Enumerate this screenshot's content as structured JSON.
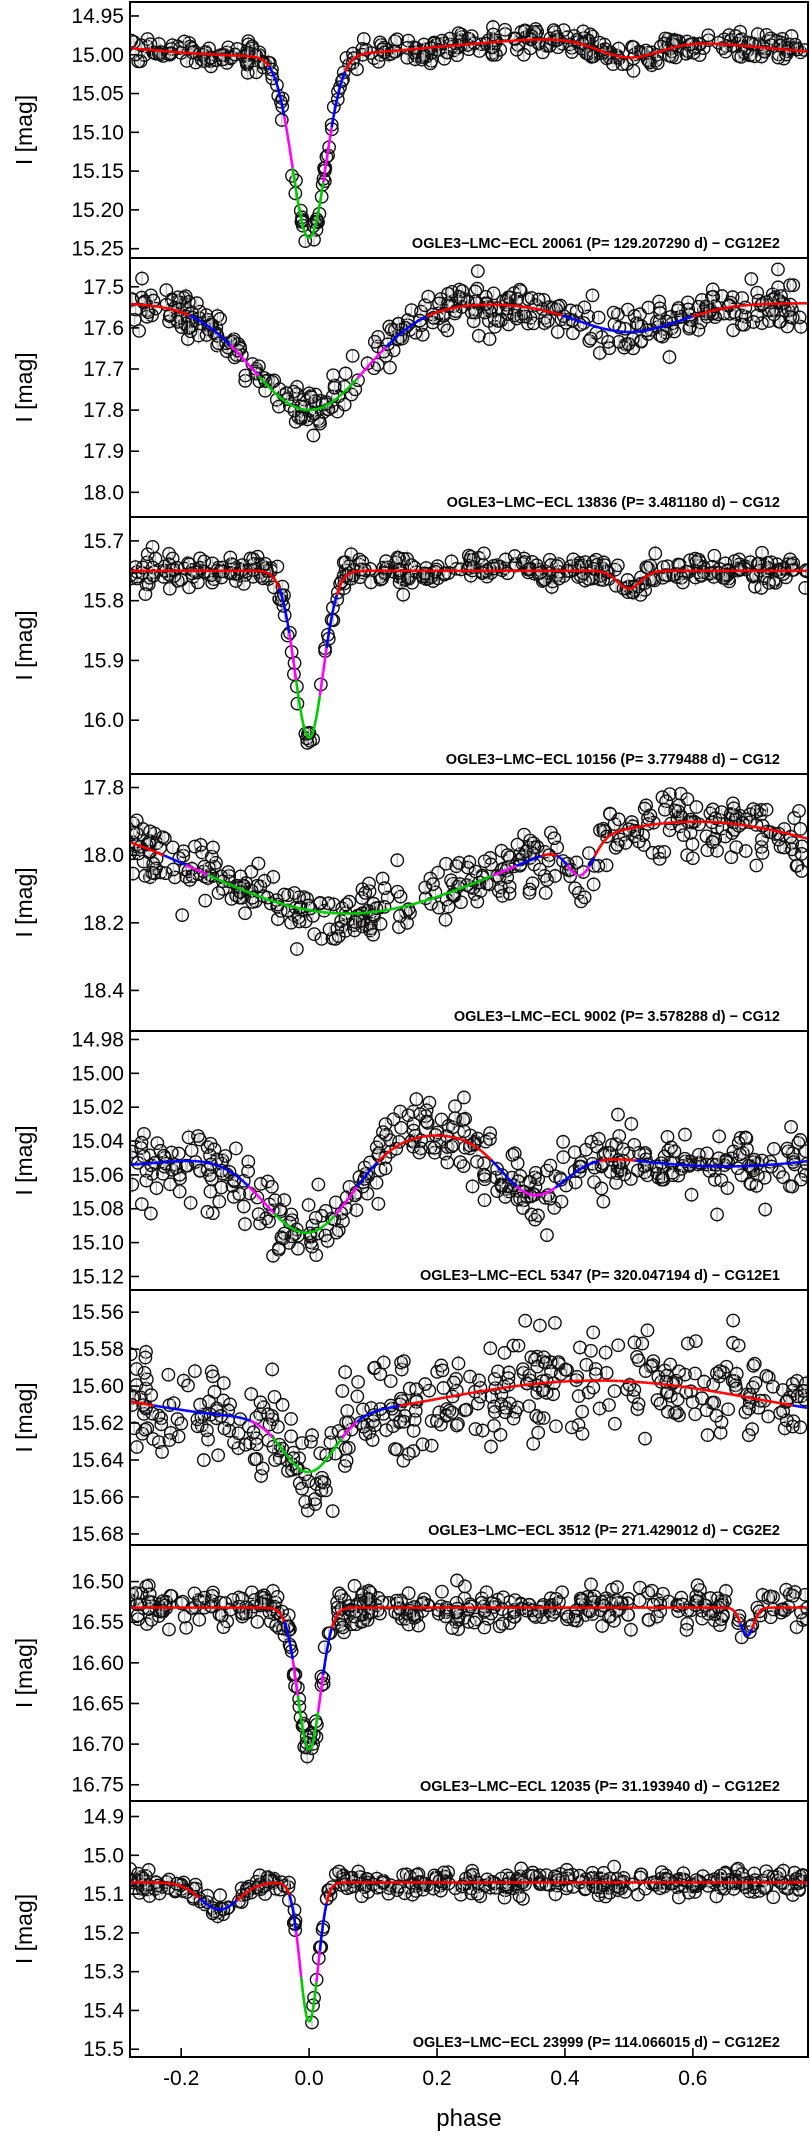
{
  "figure": {
    "xlabel": "phase",
    "x_ticks": [
      -0.2,
      0.0,
      0.2,
      0.4,
      0.6
    ]
  },
  "chart_data": [
    {
      "type": "scatter",
      "annotation": "OGLE3−LMC−ECL 20061  (P= 129.207290 d) − CG12E2",
      "ylabel": "I [mag]",
      "ylim": [
        15.262,
        14.932
      ],
      "xlim": [
        -0.28,
        0.78
      ],
      "y_ticks": [
        "14.95",
        "15.00",
        "15.05",
        "15.10",
        "15.15",
        "15.20",
        "15.25"
      ],
      "baseline": 14.99,
      "features": [
        {
          "center": 0.0,
          "depth": 0.235,
          "width": 0.026
        },
        {
          "center": 0.5,
          "depth": 0.025,
          "width": 0.05
        }
      ],
      "modulation": {
        "amplitude": 0.012,
        "period": 1.0,
        "phase": 0.3
      },
      "noise": 0.008,
      "fit_colors": [
        "#ff0000",
        "#0000ff",
        "#ff00ff",
        "#00cc00"
      ]
    },
    {
      "type": "scatter",
      "annotation": "OGLE3−LMC−ECL 13836  (P= 3.481180 d) − CG12",
      "ylabel": "I [mag]",
      "ylim": [
        18.06,
        17.43
      ],
      "xlim": [
        -0.28,
        0.78
      ],
      "y_ticks": [
        "17.5",
        "17.6",
        "17.7",
        "17.8",
        "17.9",
        "18.0"
      ],
      "baseline": 17.54,
      "features": [
        {
          "center": 0.0,
          "depth": 0.26,
          "width": 0.09
        },
        {
          "center": 0.5,
          "depth": 0.07,
          "width": 0.08
        }
      ],
      "modulation": {
        "amplitude": 0.0,
        "period": 1.0,
        "phase": 0.0
      },
      "noise": 0.03,
      "fit_colors": [
        "#ff0000",
        "#0000ff",
        "#ff00ff",
        "#00cc00"
      ]
    },
    {
      "type": "scatter",
      "annotation": "OGLE3−LMC−ECL 10156  (P= 3.779488 d) − CG12",
      "ylabel": "I [mag]",
      "ylim": [
        16.09,
        15.66
      ],
      "xlim": [
        -0.28,
        0.78
      ],
      "y_ticks": [
        "15.7",
        "15.8",
        "15.9",
        "16.0"
      ],
      "baseline": 15.75,
      "features": [
        {
          "center": 0.0,
          "depth": 0.28,
          "width": 0.022
        },
        {
          "center": 0.5,
          "depth": 0.03,
          "width": 0.018
        }
      ],
      "modulation": {
        "amplitude": 0.0,
        "period": 1.0,
        "phase": 0.0
      },
      "noise": 0.012,
      "fit_colors": [
        "#ff0000",
        "#0000ff",
        "#ff00ff",
        "#00cc00"
      ]
    },
    {
      "type": "scatter",
      "annotation": "OGLE3−LMC−ECL 9002  (P= 3.578288 d) − CG12",
      "ylabel": "I [mag]",
      "ylim": [
        18.52,
        17.76
      ],
      "xlim": [
        -0.28,
        0.78
      ],
      "y_ticks": [
        "17.8",
        "18.0",
        "18.2",
        "18.4"
      ],
      "baseline": 17.99,
      "features": [
        {
          "center": 0.0,
          "depth": 0.1,
          "width": 0.2
        },
        {
          "center": 0.425,
          "depth": 0.1,
          "width": 0.02
        }
      ],
      "modulation": {
        "amplitude": 0.09,
        "period": 1.0,
        "phase": 0.15
      },
      "noise": 0.045,
      "fit_colors": [
        "#ff0000",
        "#0000ff",
        "#ff00ff",
        "#00cc00"
      ]
    },
    {
      "type": "scatter",
      "annotation": "OGLE3−LMC−ECL 5347  (P= 320.047194 d) − CG12E1",
      "ylabel": "I [mag]",
      "ylim": [
        15.128,
        14.975
      ],
      "xlim": [
        -0.28,
        0.78
      ],
      "y_ticks": [
        "14.98",
        "15.00",
        "15.02",
        "15.04",
        "15.06",
        "15.08",
        "15.10",
        "15.12"
      ],
      "baseline": 15.045,
      "features": [
        {
          "center": 0.0,
          "depth": 0.055,
          "width": 0.07
        },
        {
          "center": 0.35,
          "depth": 0.03,
          "width": 0.05
        }
      ],
      "modulation": {
        "amplitude": 0.01,
        "period": 1.0,
        "phase": 0.6
      },
      "noise": 0.01,
      "fit_colors": [
        "#ff0000",
        "#0000ff",
        "#ff00ff",
        "#00cc00"
      ]
    },
    {
      "type": "scatter",
      "annotation": "OGLE3−LMC−ECL 3512  (P= 271.429012 d) − CG2E2",
      "ylabel": "I [mag]",
      "ylim": [
        15.686,
        15.548
      ],
      "xlim": [
        -0.28,
        0.78
      ],
      "y_ticks": [
        "15.56",
        "15.58",
        "15.60",
        "15.62",
        "15.64",
        "15.66",
        "15.68"
      ],
      "baseline": 15.607,
      "features": [
        {
          "center": 0.0,
          "depth": 0.03,
          "width": 0.04
        }
      ],
      "modulation": {
        "amplitude": 0.01,
        "period": 1.0,
        "phase": 0.3
      },
      "noise": 0.013,
      "fit_colors": [
        "#ff0000",
        "#0000ff",
        "#ff00ff",
        "#00cc00"
      ]
    },
    {
      "type": "scatter",
      "annotation": "OGLE3−LMC−ECL 12035  (P= 31.193940 d) − CG12E2",
      "ylabel": "I [mag]",
      "ylim": [
        16.77,
        16.455
      ],
      "xlim": [
        -0.28,
        0.78
      ],
      "y_ticks": [
        "16.50",
        "16.55",
        "16.60",
        "16.65",
        "16.70",
        "16.75"
      ],
      "baseline": 16.532,
      "features": [
        {
          "center": 0.0,
          "depth": 0.175,
          "width": 0.018
        },
        {
          "center": 0.685,
          "depth": 0.035,
          "width": 0.01
        }
      ],
      "modulation": {
        "amplitude": 0.0,
        "period": 1.0,
        "phase": 0.0
      },
      "noise": 0.012,
      "fit_colors": [
        "#ff0000",
        "#0000ff",
        "#ff00ff",
        "#00cc00"
      ]
    },
    {
      "type": "scatter",
      "annotation": "OGLE3−LMC−ECL 23999  (P= 114.066015 d) − CG12E2",
      "ylabel": "I [mag]",
      "ylim": [
        15.52,
        14.86
      ],
      "xlim": [
        -0.28,
        0.78
      ],
      "y_ticks": [
        "14.9",
        "15.0",
        "15.1",
        "15.2",
        "15.3",
        "15.4",
        "15.5"
      ],
      "baseline": 15.07,
      "features": [
        {
          "center": 0.0,
          "depth": 0.36,
          "width": 0.014
        },
        {
          "center": -0.14,
          "depth": 0.07,
          "width": 0.03
        }
      ],
      "modulation": {
        "amplitude": 0.0,
        "period": 1.0,
        "phase": 0.0
      },
      "noise": 0.014,
      "fit_colors": [
        "#ff0000",
        "#0000ff",
        "#ff00ff",
        "#00cc00"
      ]
    }
  ]
}
